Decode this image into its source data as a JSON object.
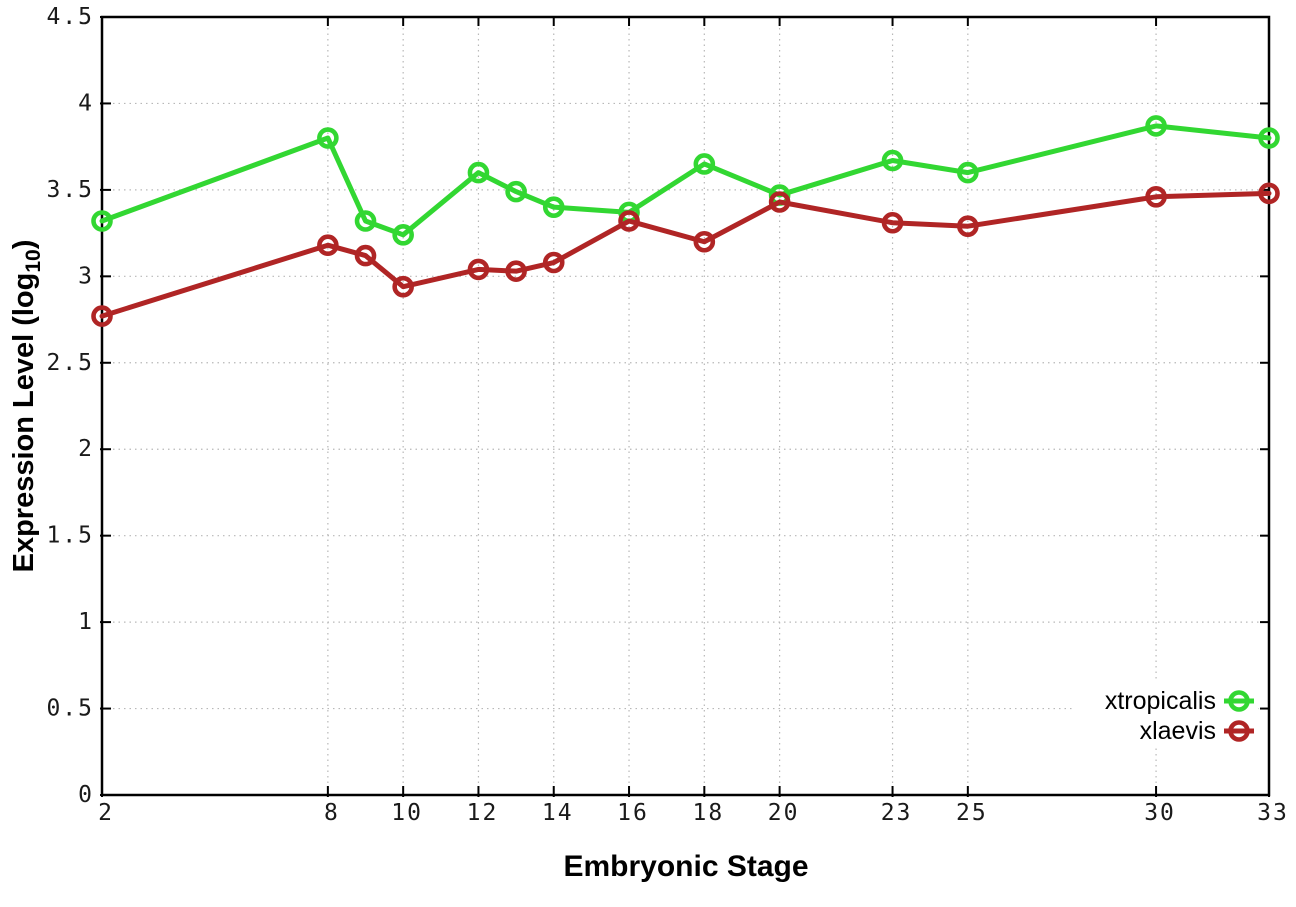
{
  "page": {
    "background": "#ffffff"
  },
  "chart_data": {
    "type": "line",
    "title": "",
    "xlabel": "Embryonic Stage",
    "ylabel": "Expression Level (log10)",
    "ylabel_parts": {
      "pre": "Expression Level (log",
      "sub": "10",
      "post": ")"
    },
    "x": [
      2,
      8,
      9,
      10,
      12,
      13,
      14,
      16,
      18,
      20,
      23,
      25,
      30,
      33
    ],
    "series": [
      {
        "name": "xtropicalis",
        "color": "#32d732",
        "values": [
          3.32,
          3.8,
          3.32,
          3.24,
          3.6,
          3.49,
          3.4,
          3.37,
          3.65,
          3.47,
          3.67,
          3.6,
          3.87,
          3.8
        ]
      },
      {
        "name": "xlaevis",
        "color": "#b02525",
        "values": [
          2.77,
          3.18,
          3.12,
          2.94,
          3.04,
          3.03,
          3.08,
          3.32,
          3.2,
          3.43,
          3.31,
          3.29,
          3.46,
          3.48
        ]
      }
    ],
    "marker": "open-circle",
    "xlim": [
      2,
      33
    ],
    "ylim": [
      0,
      4.5
    ],
    "x_ticks": [
      2,
      8,
      10,
      12,
      14,
      16,
      18,
      20,
      23,
      25,
      30,
      33
    ],
    "x_tick_labels": [
      "2",
      "8",
      "10",
      "12",
      "14",
      "16",
      "18",
      "20",
      "23",
      "25",
      "30",
      "33"
    ],
    "y_ticks": [
      0,
      0.5,
      1,
      1.5,
      2,
      2.5,
      3,
      3.5,
      4,
      4.5
    ],
    "y_tick_labels": [
      "0",
      "0.5",
      "1",
      "1.5",
      "2",
      "2.5",
      "3",
      "3.5",
      "4",
      "4.5"
    ],
    "grid": true,
    "grid_style": "dotted",
    "grid_color": "#b8b8b8",
    "axis_color": "#000000",
    "tick_label_color": "#1a1a1a",
    "legend_position": "bottom-right",
    "legend_entries": [
      "xtropicalis",
      "xlaevis"
    ]
  }
}
